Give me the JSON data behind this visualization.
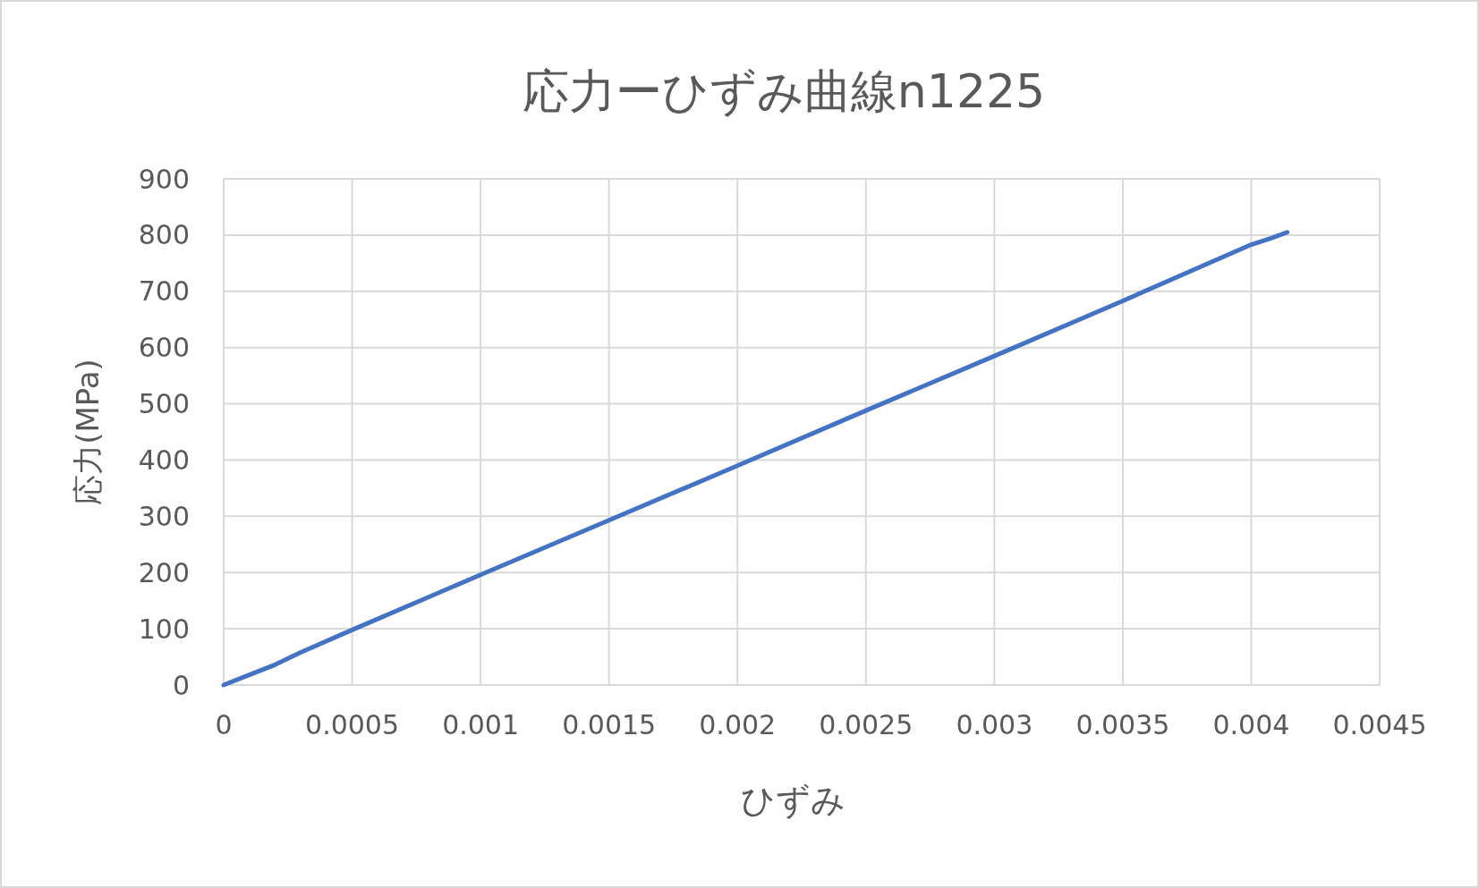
{
  "chart_data": {
    "type": "line",
    "title": "応力ーひずみ曲線n1225",
    "xlabel": "ひずみ",
    "ylabel": "応力(MPa)",
    "series": [
      {
        "color": "#4472c4",
        "x": [
          0,
          0.0001,
          0.0002,
          0.0003,
          0.0005,
          0.001,
          0.0015,
          0.002,
          0.0025,
          0.003,
          0.0035,
          0.004,
          0.00408,
          0.00414
        ],
        "values": [
          0,
          18,
          36,
          58,
          98,
          196,
          293,
          390,
          488,
          585,
          683,
          783,
          795,
          805
        ]
      }
    ],
    "xlim": [
      0,
      0.0045
    ],
    "xticks": [
      0,
      0.0005,
      0.001,
      0.0015,
      0.002,
      0.0025,
      0.003,
      0.0035,
      0.004,
      0.0045
    ],
    "ylim": [
      0,
      900
    ],
    "yticks": [
      0,
      100,
      200,
      300,
      400,
      500,
      600,
      700,
      800,
      900
    ],
    "grid": true,
    "marker": "none",
    "line_style": "solid"
  }
}
